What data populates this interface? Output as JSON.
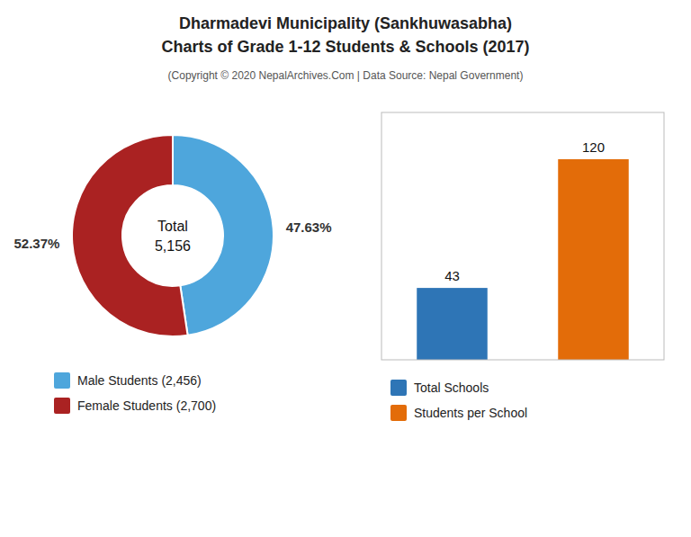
{
  "chart_data": [
    {
      "type": "donut",
      "title": [
        "Dharmadevi Municipality (Sankhuwasabha)",
        "Charts of Grade 1-12 Students & Schools (2017)"
      ],
      "subtitle": "(Copyright © 2020 NepalArchives.Com | Data Source: Nepal Government)",
      "categories": [
        "Male Students (2,456)",
        "Female Students (2,700)"
      ],
      "values": [
        47.63,
        52.37
      ],
      "value_labels": [
        "47.63%",
        "52.37%"
      ],
      "colors": [
        "#4ea6dc",
        "#aa2222"
      ],
      "annotations": [
        "Total",
        "5,156"
      ],
      "data_labels": true,
      "legend": "bottom"
    },
    {
      "type": "bar",
      "categories": [
        "Total Schools",
        "Students per School"
      ],
      "values": [
        43,
        120
      ],
      "colors": [
        "#2e75b6",
        "#e36c09"
      ],
      "ylim": [
        0,
        148
      ],
      "tick_labels": false,
      "data_labels": true,
      "legend": "bottom"
    }
  ]
}
